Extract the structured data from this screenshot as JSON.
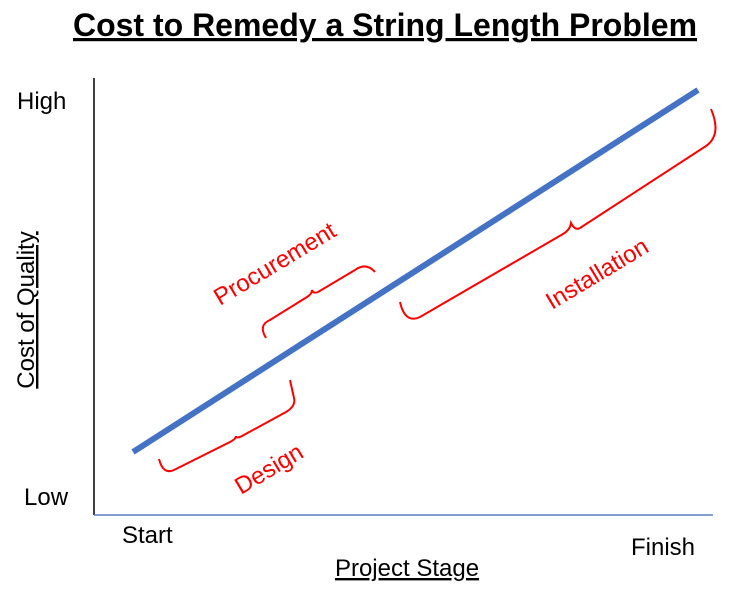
{
  "title": "Cost to Remedy a String Length Problem",
  "y_axis": {
    "label": "Cost of Quality",
    "high_label": "High",
    "low_label": "Low"
  },
  "x_axis": {
    "label": "Project Stage",
    "start_label": "Start",
    "finish_label": "Finish"
  },
  "phases": [
    {
      "name": "Design"
    },
    {
      "name": "Procurement"
    },
    {
      "name": "Installation"
    }
  ],
  "colors": {
    "line": "#4472C4",
    "phase": "#FF0000",
    "axis": "#000000"
  }
}
